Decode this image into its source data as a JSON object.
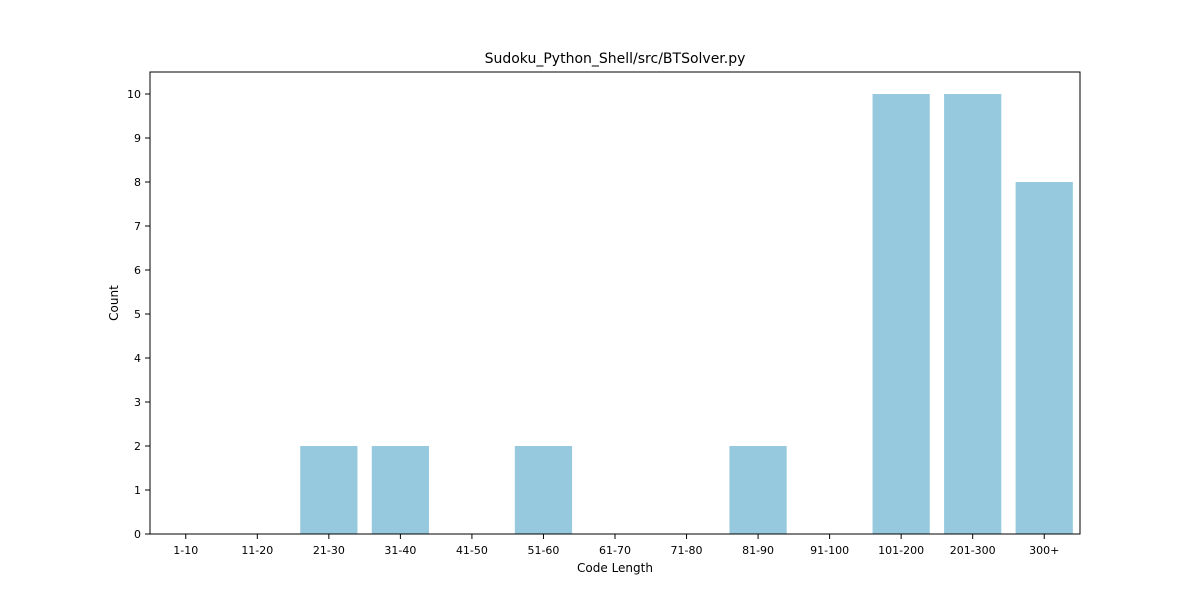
{
  "chart_data": {
    "type": "bar",
    "title": "Sudoku_Python_Shell/src/BTSolver.py",
    "xlabel": "Code Length",
    "ylabel": "Count",
    "categories": [
      "1-10",
      "11-20",
      "21-30",
      "31-40",
      "41-50",
      "51-60",
      "61-70",
      "71-80",
      "81-90",
      "91-100",
      "101-200",
      "201-300",
      "300+"
    ],
    "values": [
      0,
      0,
      2,
      2,
      0,
      2,
      0,
      0,
      2,
      0,
      10,
      10,
      8
    ],
    "ylim": [
      0,
      10.5
    ],
    "yticks": [
      "0",
      "1",
      "2",
      "3",
      "4",
      "5",
      "6",
      "7",
      "8",
      "9",
      "10"
    ],
    "grid": false,
    "bar_color": "#96c9de"
  }
}
